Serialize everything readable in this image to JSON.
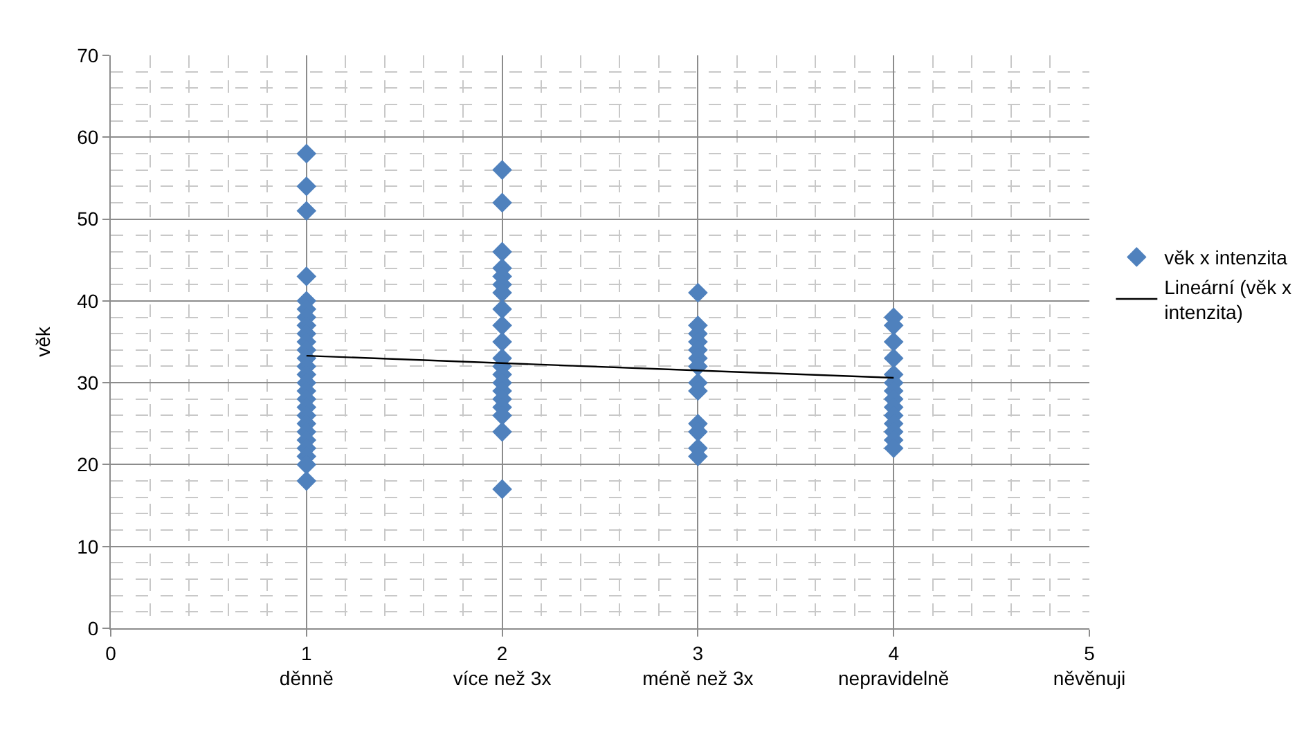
{
  "chart_data": {
    "type": "scatter",
    "ylabel": "věk",
    "xlim": [
      0,
      5
    ],
    "ylim": [
      0,
      70
    ],
    "xticks": [
      {
        "value": 0,
        "label": "0"
      },
      {
        "value": 1,
        "label": "1\nděnně"
      },
      {
        "value": 2,
        "label": "2\nvíce než 3x"
      },
      {
        "value": 3,
        "label": "3\nméně než 3x"
      },
      {
        "value": 4,
        "label": "4\nnepravidelně"
      },
      {
        "value": 5,
        "label": "5\nněvěnuji"
      }
    ],
    "yticks": [
      0,
      10,
      20,
      30,
      40,
      50,
      60,
      70
    ],
    "grid": true,
    "legend": "right",
    "series": [
      {
        "name": "věk x intenzita",
        "marker": "diamond",
        "color": "#4f81bd",
        "x": [
          1,
          1,
          1,
          1,
          1,
          1,
          1,
          1,
          1,
          1,
          1,
          1,
          1,
          1,
          1,
          1,
          1,
          1,
          1,
          1,
          1,
          1,
          1,
          1,
          1,
          1,
          2,
          2,
          2,
          2,
          2,
          2,
          2,
          2,
          2,
          2,
          2,
          2,
          2,
          2,
          2,
          2,
          2,
          2,
          2,
          2,
          3,
          3,
          3,
          3,
          3,
          3,
          3,
          3,
          3,
          3,
          3,
          3,
          3,
          4,
          4,
          4,
          4,
          4,
          4,
          4,
          4,
          4,
          4,
          4,
          4,
          4,
          4
        ],
        "values": [
          58,
          54,
          51,
          43,
          40,
          39,
          38,
          37,
          36,
          35,
          34,
          33,
          32,
          31,
          30,
          29,
          28,
          27,
          26,
          25,
          24,
          23,
          22,
          21,
          20,
          18,
          56,
          52,
          46,
          44,
          43,
          42,
          41,
          39,
          37,
          35,
          33,
          32,
          31,
          30,
          29,
          28,
          27,
          26,
          24,
          17,
          41,
          37,
          36,
          35,
          34,
          33,
          32,
          30,
          29,
          25,
          24,
          22,
          21,
          38,
          37,
          35,
          33,
          31,
          30,
          29,
          28,
          27,
          26,
          25,
          24,
          23,
          22
        ]
      },
      {
        "name": "Lineární (věk x\nintenzita)",
        "type": "line",
        "color": "#000000",
        "x": [
          1,
          4
        ],
        "values": [
          33.3,
          30.6
        ]
      }
    ]
  }
}
